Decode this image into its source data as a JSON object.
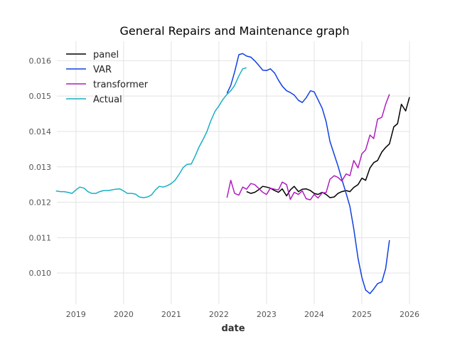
{
  "chart_data": {
    "type": "line",
    "title": "General Repairs and Maintenance graph",
    "xlabel": "date",
    "ylabel": "",
    "xlim": [
      2018.6,
      2026.0
    ],
    "ylim": [
      0.00912,
      0.01655
    ],
    "x_ticks": [
      2019,
      2020,
      2021,
      2022,
      2023,
      2024,
      2025,
      2026
    ],
    "x_tick_labels": [
      "2019",
      "2020",
      "2021",
      "2022",
      "2023",
      "2024",
      "2025",
      "2026"
    ],
    "y_ticks": [
      0.01,
      0.011,
      0.012,
      0.013,
      0.014,
      0.015,
      0.016
    ],
    "y_tick_labels": [
      "0.010",
      "0.011",
      "0.012",
      "0.013",
      "0.014",
      "0.015",
      "0.016"
    ],
    "grid": true,
    "legend_position": "top-left",
    "series": [
      {
        "name": "panel",
        "color": "#000000",
        "points": [
          [
            2022.58,
            0.0123
          ],
          [
            2022.67,
            0.01225
          ],
          [
            2022.75,
            0.01228
          ],
          [
            2022.83,
            0.01235
          ],
          [
            2022.92,
            0.01245
          ],
          [
            2023.0,
            0.01243
          ],
          [
            2023.08,
            0.0124
          ],
          [
            2023.17,
            0.01233
          ],
          [
            2023.25,
            0.01228
          ],
          [
            2023.33,
            0.01238
          ],
          [
            2023.42,
            0.01218
          ],
          [
            2023.5,
            0.01235
          ],
          [
            2023.58,
            0.01245
          ],
          [
            2023.67,
            0.0123
          ],
          [
            2023.75,
            0.01237
          ],
          [
            2023.83,
            0.01238
          ],
          [
            2023.92,
            0.01233
          ],
          [
            2024.0,
            0.01225
          ],
          [
            2024.08,
            0.01222
          ],
          [
            2024.17,
            0.01228
          ],
          [
            2024.25,
            0.01222
          ],
          [
            2024.33,
            0.01213
          ],
          [
            2024.42,
            0.01215
          ],
          [
            2024.5,
            0.01225
          ],
          [
            2024.58,
            0.0123
          ],
          [
            2024.67,
            0.01233
          ],
          [
            2024.75,
            0.0123
          ],
          [
            2024.83,
            0.01242
          ],
          [
            2024.92,
            0.0125
          ],
          [
            2025.0,
            0.01268
          ],
          [
            2025.08,
            0.01262
          ],
          [
            2025.17,
            0.01297
          ],
          [
            2025.25,
            0.01312
          ],
          [
            2025.33,
            0.01318
          ],
          [
            2025.42,
            0.01342
          ],
          [
            2025.5,
            0.01355
          ],
          [
            2025.58,
            0.01365
          ],
          [
            2025.67,
            0.01413
          ],
          [
            2025.75,
            0.01422
          ],
          [
            2025.83,
            0.01477
          ],
          [
            2025.92,
            0.01458
          ],
          [
            2026.0,
            0.01497
          ]
        ]
      },
      {
        "name": "VAR",
        "color": "#1040e0",
        "points": [
          [
            2022.17,
            0.01508
          ],
          [
            2022.25,
            0.0153
          ],
          [
            2022.33,
            0.01568
          ],
          [
            2022.42,
            0.01617
          ],
          [
            2022.5,
            0.0162
          ],
          [
            2022.58,
            0.01613
          ],
          [
            2022.67,
            0.0161
          ],
          [
            2022.75,
            0.016
          ],
          [
            2022.83,
            0.01588
          ],
          [
            2022.92,
            0.01573
          ],
          [
            2023.0,
            0.01572
          ],
          [
            2023.08,
            0.01577
          ],
          [
            2023.17,
            0.01565
          ],
          [
            2023.25,
            0.01545
          ],
          [
            2023.33,
            0.01528
          ],
          [
            2023.42,
            0.01515
          ],
          [
            2023.5,
            0.0151
          ],
          [
            2023.58,
            0.01503
          ],
          [
            2023.67,
            0.01488
          ],
          [
            2023.75,
            0.01482
          ],
          [
            2023.83,
            0.01495
          ],
          [
            2023.92,
            0.01515
          ],
          [
            2024.0,
            0.01512
          ],
          [
            2024.08,
            0.0149
          ],
          [
            2024.17,
            0.01465
          ],
          [
            2024.25,
            0.01428
          ],
          [
            2024.33,
            0.01372
          ],
          [
            2024.42,
            0.01335
          ],
          [
            2024.5,
            0.01302
          ],
          [
            2024.58,
            0.01265
          ],
          [
            2024.67,
            0.01225
          ],
          [
            2024.75,
            0.01188
          ],
          [
            2024.83,
            0.01125
          ],
          [
            2024.92,
            0.01042
          ],
          [
            2025.0,
            0.00988
          ],
          [
            2025.08,
            0.00952
          ],
          [
            2025.17,
            0.00942
          ],
          [
            2025.25,
            0.00955
          ],
          [
            2025.33,
            0.0097
          ],
          [
            2025.42,
            0.00975
          ],
          [
            2025.5,
            0.01013
          ],
          [
            2025.58,
            0.01093
          ]
        ]
      },
      {
        "name": "transformer",
        "color": "#b01ebe",
        "points": [
          [
            2022.17,
            0.01213
          ],
          [
            2022.25,
            0.01262
          ],
          [
            2022.33,
            0.01225
          ],
          [
            2022.42,
            0.0122
          ],
          [
            2022.5,
            0.01243
          ],
          [
            2022.58,
            0.01237
          ],
          [
            2022.67,
            0.01253
          ],
          [
            2022.75,
            0.0125
          ],
          [
            2022.83,
            0.0124
          ],
          [
            2022.92,
            0.01228
          ],
          [
            2023.0,
            0.01222
          ],
          [
            2023.08,
            0.0124
          ],
          [
            2023.17,
            0.01237
          ],
          [
            2023.25,
            0.01235
          ],
          [
            2023.33,
            0.01257
          ],
          [
            2023.42,
            0.0125
          ],
          [
            2023.5,
            0.01208
          ],
          [
            2023.58,
            0.01228
          ],
          [
            2023.67,
            0.01222
          ],
          [
            2023.75,
            0.01232
          ],
          [
            2023.83,
            0.0121
          ],
          [
            2023.92,
            0.01207
          ],
          [
            2024.0,
            0.01222
          ],
          [
            2024.08,
            0.01212
          ],
          [
            2024.17,
            0.01227
          ],
          [
            2024.25,
            0.01227
          ],
          [
            2024.33,
            0.01265
          ],
          [
            2024.42,
            0.01275
          ],
          [
            2024.5,
            0.0127
          ],
          [
            2024.58,
            0.0126
          ],
          [
            2024.67,
            0.0128
          ],
          [
            2024.75,
            0.01275
          ],
          [
            2024.83,
            0.01318
          ],
          [
            2024.92,
            0.01297
          ],
          [
            2025.0,
            0.01337
          ],
          [
            2025.08,
            0.01348
          ],
          [
            2025.17,
            0.0139
          ],
          [
            2025.25,
            0.0138
          ],
          [
            2025.33,
            0.01435
          ],
          [
            2025.42,
            0.0144
          ],
          [
            2025.5,
            0.01477
          ],
          [
            2025.58,
            0.01505
          ]
        ]
      },
      {
        "name": "Actual",
        "color": "#17b0c4",
        "points": [
          [
            2018.58,
            0.01232
          ],
          [
            2018.67,
            0.0123
          ],
          [
            2018.75,
            0.0123
          ],
          [
            2018.83,
            0.01228
          ],
          [
            2018.92,
            0.01225
          ],
          [
            2019.0,
            0.01235
          ],
          [
            2019.08,
            0.01243
          ],
          [
            2019.17,
            0.0124
          ],
          [
            2019.25,
            0.0123
          ],
          [
            2019.33,
            0.01225
          ],
          [
            2019.42,
            0.01225
          ],
          [
            2019.5,
            0.0123
          ],
          [
            2019.58,
            0.01233
          ],
          [
            2019.67,
            0.01233
          ],
          [
            2019.75,
            0.01235
          ],
          [
            2019.83,
            0.01237
          ],
          [
            2019.92,
            0.01238
          ],
          [
            2020.0,
            0.01232
          ],
          [
            2020.08,
            0.01225
          ],
          [
            2020.17,
            0.01225
          ],
          [
            2020.25,
            0.01223
          ],
          [
            2020.33,
            0.01215
          ],
          [
            2020.42,
            0.01213
          ],
          [
            2020.5,
            0.01215
          ],
          [
            2020.58,
            0.0122
          ],
          [
            2020.67,
            0.01235
          ],
          [
            2020.75,
            0.01245
          ],
          [
            2020.83,
            0.01243
          ],
          [
            2020.92,
            0.01247
          ],
          [
            2021.0,
            0.01253
          ],
          [
            2021.08,
            0.01262
          ],
          [
            2021.17,
            0.0128
          ],
          [
            2021.25,
            0.01298
          ],
          [
            2021.33,
            0.01307
          ],
          [
            2021.42,
            0.01308
          ],
          [
            2021.5,
            0.0133
          ],
          [
            2021.58,
            0.01355
          ],
          [
            2021.67,
            0.01378
          ],
          [
            2021.75,
            0.014
          ],
          [
            2021.83,
            0.0143
          ],
          [
            2021.92,
            0.01457
          ],
          [
            2022.0,
            0.01472
          ],
          [
            2022.08,
            0.0149
          ],
          [
            2022.17,
            0.01505
          ],
          [
            2022.25,
            0.01515
          ],
          [
            2022.33,
            0.0153
          ],
          [
            2022.42,
            0.01557
          ],
          [
            2022.5,
            0.01577
          ],
          [
            2022.58,
            0.0158
          ]
        ]
      }
    ]
  }
}
